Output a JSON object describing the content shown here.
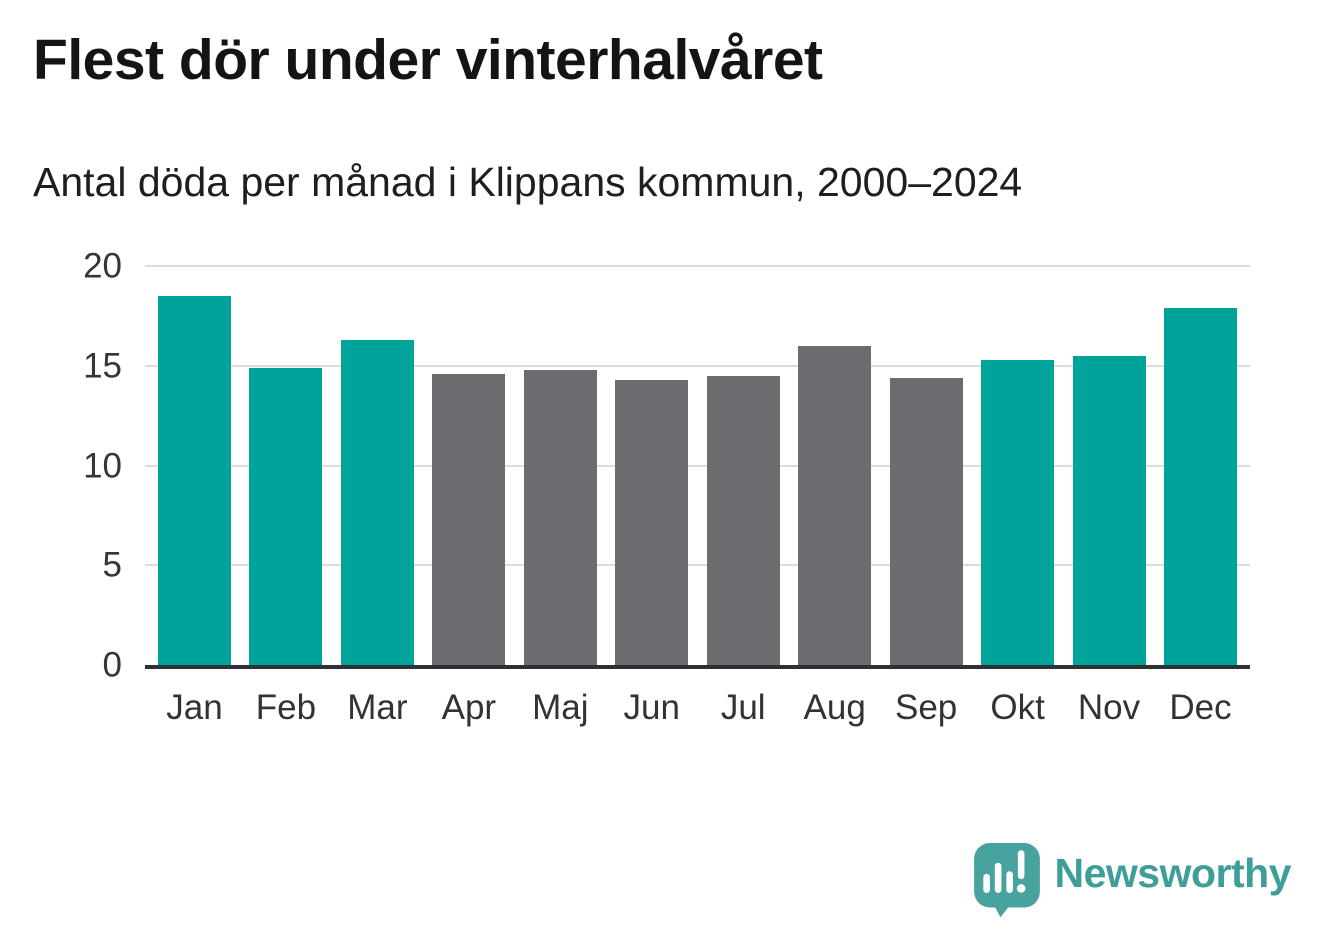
{
  "page": {
    "title": "Flest dör under vinterhalvåret",
    "subtitle": "Antal döda per månad i Klippans kommun, 2000–2024"
  },
  "chart_data": {
    "type": "bar",
    "title": "Flest dör under vinterhalvåret",
    "subtitle": "Antal döda per månad i Klippans kommun, 2000–2024",
    "categories": [
      "Jan",
      "Feb",
      "Mar",
      "Apr",
      "Maj",
      "Jun",
      "Jul",
      "Aug",
      "Sep",
      "Okt",
      "Nov",
      "Dec"
    ],
    "values": [
      18.5,
      14.9,
      16.3,
      14.6,
      14.8,
      14.3,
      14.5,
      16.0,
      14.4,
      15.3,
      15.5,
      17.9
    ],
    "bar_colors": [
      "teal",
      "teal",
      "teal",
      "gray",
      "gray",
      "gray",
      "gray",
      "gray",
      "gray",
      "teal",
      "teal",
      "teal"
    ],
    "xlabel": "",
    "ylabel": "",
    "ylim": [
      0,
      20
    ],
    "yticks": [
      0,
      5,
      10,
      15,
      20
    ],
    "grid": true,
    "legend": "none",
    "colors": {
      "highlight": "#00a39a",
      "neutral": "#6b6b70",
      "gridline": "#dcdcdc",
      "axis_line": "#2d3134",
      "tick_text": "#363636"
    }
  },
  "branding": {
    "logo_text": "Newsworthy",
    "logo_color": "#3d9e9a",
    "logo_icon": "newsworthy-speech-bubble-chart-icon",
    "logo_icon_color": "#48a29e"
  }
}
